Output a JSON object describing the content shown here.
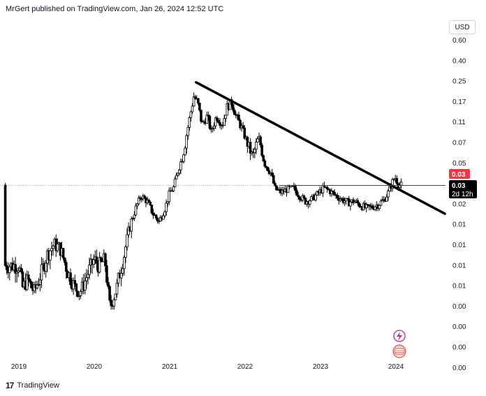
{
  "header": {
    "text": "MrGert published on TradingView.com, Jan 26, 2024 12:52 UTC"
  },
  "currency_label": "USD",
  "footer": {
    "brand": "TradingView"
  },
  "price_tags": {
    "red": "0.03",
    "black": "0.03",
    "countdown": "2d 12h"
  },
  "colors": {
    "up": "#ffffff",
    "down": "#000000",
    "wick": "#000000",
    "trendline": "#000000",
    "price_line": "#b2152b",
    "tag_red": "#f23645",
    "tag_black": "#000000"
  },
  "chart_data": {
    "type": "candlestick",
    "title": "",
    "xlabel": "",
    "ylabel": "",
    "scale": "log",
    "x_ticks": [
      "2019",
      "2020",
      "2021",
      "2022",
      "2023",
      "2024"
    ],
    "y_ticks": [
      "0.60",
      "0.40",
      "0.25",
      "0.17",
      "0.11",
      "0.07",
      "0.05",
      "0.03",
      "0.02",
      "0.01",
      "0.01",
      "0.01",
      "0.01",
      "0.00",
      "0.00",
      "0.00",
      "0.00"
    ],
    "y_tick_values": [
      0.6,
      0.4,
      0.25,
      0.17,
      0.11,
      0.07,
      0.05,
      0.03,
      0.02,
      0.012,
      0.009,
      0.007,
      0.0055,
      0.004,
      0.003,
      0.0023,
      0.0018
    ],
    "last_price": 0.03,
    "trendline": [
      {
        "x": 2021.35,
        "y": 0.24
      },
      {
        "x": 2024.65,
        "y": 0.015
      }
    ],
    "series": [
      {
        "x": [
          2019.0,
          2019.5,
          2020.0,
          2020.2,
          2020.5,
          2020.8,
          2021.0,
          2021.3,
          2021.5,
          2021.8,
          2022.0,
          2022.3,
          2022.5,
          2022.8,
          2023.0,
          2023.3,
          2023.6,
          2023.8,
          2023.95,
          2024.05
        ],
        "close": [
          0.009,
          0.0085,
          0.0075,
          0.004,
          0.01,
          0.018,
          0.03,
          0.17,
          0.12,
          0.17,
          0.1,
          0.04,
          0.026,
          0.021,
          0.024,
          0.018,
          0.0175,
          0.018,
          0.025,
          0.03
        ]
      }
    ]
  }
}
